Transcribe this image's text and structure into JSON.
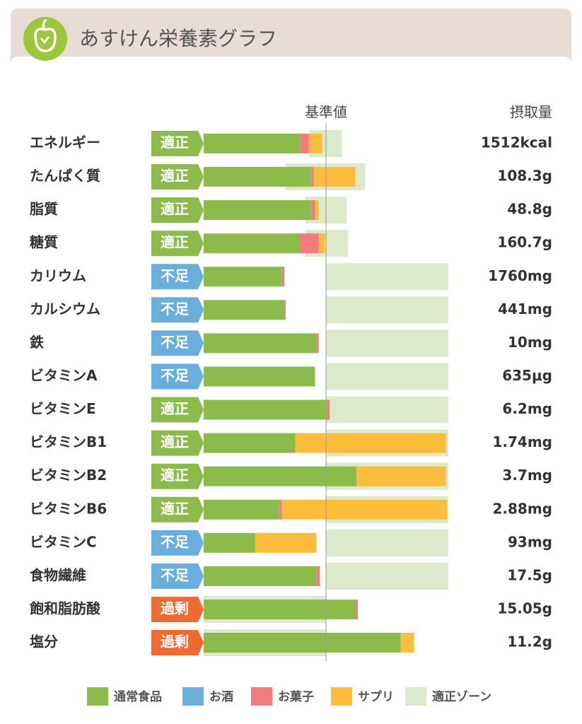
{
  "header": {
    "title": "あすけん栄養素グラフ"
  },
  "chart_data": {
    "type": "bar",
    "orientation": "horizontal",
    "stacked": true,
    "reference_label": "基準値",
    "intake_header": "摂取量",
    "reference_value": 100,
    "xlim": [
      0,
      200
    ],
    "categories": [
      "エネルギー",
      "たんぱく質",
      "脂質",
      "糖質",
      "カリウム",
      "カルシウム",
      "鉄",
      "ビタミンA",
      "ビタミンE",
      "ビタミンB1",
      "ビタミンB2",
      "ビタミンB6",
      "ビタミンC",
      "食物繊維",
      "飽和脂肪酸",
      "塩分"
    ],
    "status": [
      {
        "label": "適正",
        "color": "#8bbb4a"
      },
      {
        "label": "適正",
        "color": "#8bbb4a"
      },
      {
        "label": "適正",
        "color": "#8bbb4a"
      },
      {
        "label": "適正",
        "color": "#8bbb4a"
      },
      {
        "label": "不足",
        "color": "#6aaedb"
      },
      {
        "label": "不足",
        "color": "#6aaedb"
      },
      {
        "label": "不足",
        "color": "#6aaedb"
      },
      {
        "label": "不足",
        "color": "#6aaedb"
      },
      {
        "label": "適正",
        "color": "#8bbb4a"
      },
      {
        "label": "適正",
        "color": "#8bbb4a"
      },
      {
        "label": "適正",
        "color": "#8bbb4a"
      },
      {
        "label": "適正",
        "color": "#8bbb4a"
      },
      {
        "label": "不足",
        "color": "#6aaedb"
      },
      {
        "label": "不足",
        "color": "#6aaedb"
      },
      {
        "label": "過剰",
        "color": "#ef6a33"
      },
      {
        "label": "過剰",
        "color": "#ef6a33"
      }
    ],
    "intake": [
      "1512kcal",
      "108.3g",
      "48.8g",
      "160.7g",
      "1760mg",
      "441mg",
      "10mg",
      "635μg",
      "6.2mg",
      "1.74mg",
      "3.7mg",
      "2.88mg",
      "93mg",
      "17.5g",
      "15.05g",
      "11.2g"
    ],
    "series": [
      {
        "name": "通常食品",
        "color": "#8bbb4a",
        "values": [
          79,
          88,
          88,
          78,
          64,
          66,
          92,
          91,
          101,
          75,
          125,
          62,
          42,
          92,
          124,
          161
        ]
      },
      {
        "name": "お酒",
        "color": "#6aaedb",
        "values": [
          0,
          0,
          0,
          0,
          0,
          0,
          0,
          0,
          0,
          0,
          0,
          0,
          0,
          0,
          0,
          0
        ]
      },
      {
        "name": "お菓子",
        "color": "#f47b7b",
        "values": [
          7,
          2,
          3,
          16,
          2,
          1,
          2,
          0,
          2,
          0,
          0,
          2,
          0,
          3,
          2,
          0
        ]
      },
      {
        "name": "サプリ",
        "color": "#fbbd3b",
        "values": [
          11,
          34,
          3,
          5,
          0,
          0,
          0,
          0,
          0,
          123,
          73,
          135,
          50,
          0,
          0,
          11
        ]
      }
    ],
    "zone": {
      "name": "適正ゾーン",
      "color": "#dce9cb",
      "low": [
        86,
        67,
        83,
        83,
        100,
        100,
        100,
        100,
        100,
        100,
        100,
        100,
        100,
        100,
        0,
        0
      ],
      "high": [
        113,
        132,
        117,
        118,
        200,
        200,
        200,
        200,
        200,
        200,
        200,
        200,
        200,
        200,
        100,
        100
      ]
    }
  }
}
